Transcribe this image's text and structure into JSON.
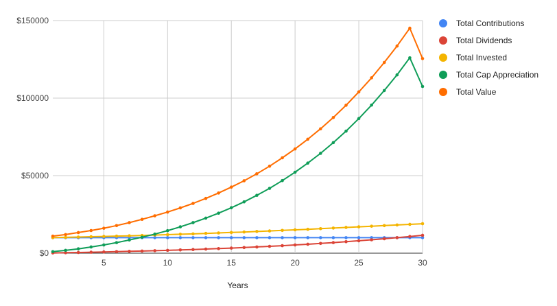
{
  "chart_data": {
    "type": "line",
    "title": "",
    "xlabel": "Years",
    "ylabel": "",
    "x": [
      1,
      2,
      3,
      4,
      5,
      6,
      7,
      8,
      9,
      10,
      11,
      12,
      13,
      14,
      15,
      16,
      17,
      18,
      19,
      20,
      21,
      22,
      23,
      24,
      25,
      26,
      27,
      28,
      29,
      30
    ],
    "xlim": [
      1,
      30
    ],
    "ylim": [
      0,
      150000
    ],
    "x_ticks": [
      5,
      10,
      15,
      20,
      25,
      30
    ],
    "y_ticks": [
      0,
      50000,
      100000,
      150000
    ],
    "x_tick_labels": [
      "5",
      "10",
      "15",
      "20",
      "25",
      "30"
    ],
    "y_tick_labels": [
      "$0",
      "$50000",
      "$100000",
      "$150000"
    ],
    "grid": true,
    "legend_position": "right",
    "series": [
      {
        "name": "Total Contributions",
        "color": "#4285f4",
        "values": [
          10000,
          10000,
          10000,
          10000,
          10000,
          10000,
          10000,
          10000,
          10000,
          10000,
          10000,
          10000,
          10000,
          10000,
          10000,
          10000,
          10000,
          10000,
          10000,
          10000,
          10000,
          10000,
          10000,
          10000,
          10000,
          10000,
          10000,
          10000,
          10000,
          10000
        ]
      },
      {
        "name": "Total Dividends",
        "color": "#db4437",
        "values": [
          150,
          300,
          460,
          620,
          800,
          980,
          1180,
          1380,
          1600,
          1830,
          2080,
          2350,
          2640,
          2950,
          3280,
          3630,
          4010,
          4410,
          4840,
          5290,
          5770,
          6280,
          6820,
          7390,
          7990,
          8630,
          9300,
          10000,
          10740,
          11530
        ]
      },
      {
        "name": "Total Invested",
        "color": "#f4b400",
        "values": [
          10000,
          10200,
          10400,
          10600,
          10800,
          11000,
          11200,
          11450,
          11700,
          11950,
          12200,
          12450,
          12750,
          13050,
          13350,
          13650,
          14000,
          14350,
          14700,
          15050,
          15400,
          15800,
          16200,
          16600,
          17000,
          17400,
          17800,
          18200,
          18600,
          19000
        ]
      },
      {
        "name": "Total Cap Appreciation",
        "color": "#0f9d58",
        "values": [
          1000,
          1800,
          2800,
          4000,
          5300,
          6800,
          8500,
          10300,
          12300,
          14500,
          17000,
          19700,
          22600,
          25800,
          29300,
          33100,
          37300,
          41800,
          46800,
          52200,
          58100,
          64400,
          71300,
          78700,
          86800,
          95500,
          104900,
          115000,
          126000,
          107500
        ]
      },
      {
        "name": "Total Value",
        "color": "#ff6d00",
        "values": [
          11000,
          12000,
          13300,
          14600,
          16100,
          17800,
          19700,
          21800,
          24100,
          26500,
          29200,
          32100,
          35300,
          38800,
          42600,
          46700,
          51200,
          56100,
          61500,
          67200,
          73500,
          80200,
          87500,
          95400,
          104000,
          113100,
          123000,
          133600,
          145100,
          125500
        ]
      }
    ]
  }
}
